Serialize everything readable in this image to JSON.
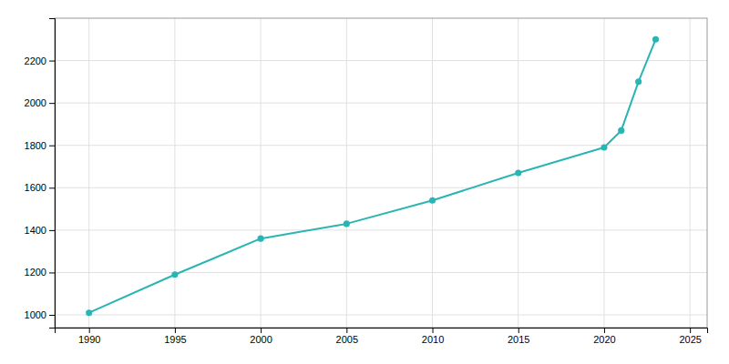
{
  "chart_data": {
    "type": "line",
    "x": [
      1990,
      1995,
      2000,
      2005,
      2010,
      2015,
      2020,
      2021,
      2022,
      2023
    ],
    "values": [
      1010,
      1190,
      1360,
      1430,
      1540,
      1670,
      1790,
      1870,
      2100,
      2300
    ],
    "color": "#2ab5b5",
    "marker": "circle",
    "xlim": [
      1988,
      2026
    ],
    "ylim": [
      940,
      2400
    ],
    "xticks": [
      1990,
      1995,
      2000,
      2005,
      2010,
      2015,
      2020,
      2025
    ],
    "yticks": [
      1000,
      1200,
      1400,
      1600,
      1800,
      2000,
      2200
    ],
    "grid": true
  }
}
